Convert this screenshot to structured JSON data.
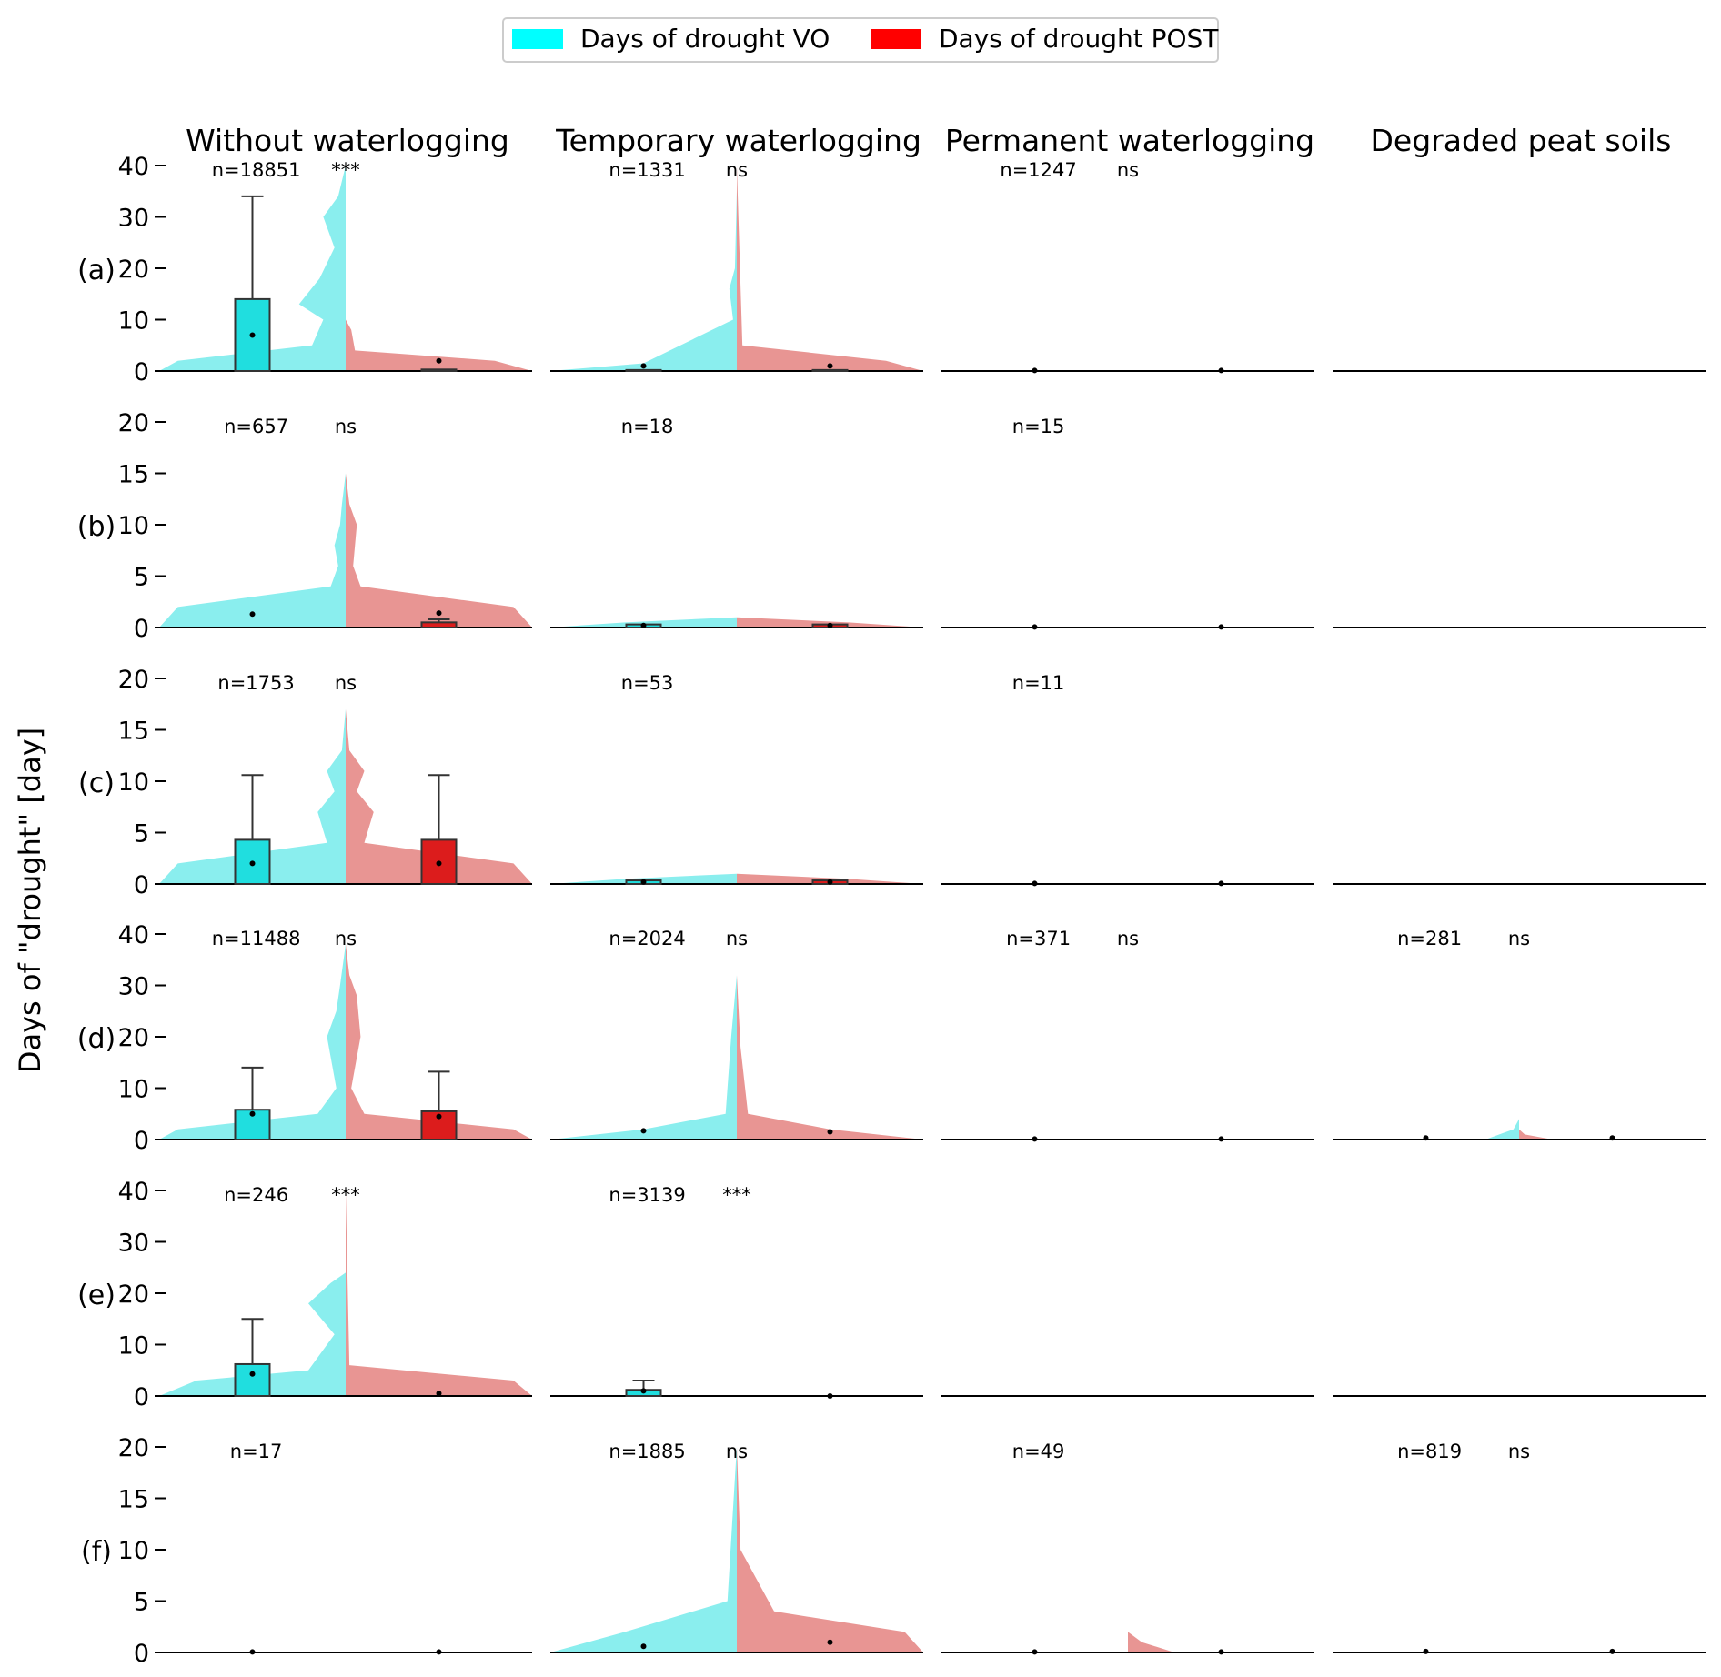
{
  "chart_data": {
    "type": "violin",
    "ylabel": "Days of \"drought\" [day]",
    "legend": [
      {
        "label": "Days of drought VO",
        "color": "#00ffff"
      },
      {
        "label": "Days of drought POST",
        "color": "#ff0000"
      }
    ],
    "columns": [
      "Without waterlogging",
      "Temporary waterlogging",
      "Permanent waterlogging",
      "Degraded peat soils"
    ],
    "rows": [
      {
        "label": "(a)",
        "ylim": [
          0,
          40
        ],
        "ticks": [
          "0",
          "10",
          "20",
          "30",
          "40"
        ],
        "panels": [
          {
            "n": "n=18851",
            "sig": "***",
            "vo_bar": 14,
            "vo_err": 34,
            "vo_mean": 7,
            "post_bar": 0.3,
            "post_err": 0.3,
            "post_mean": 2
          },
          {
            "n": "n=1331",
            "sig": "ns",
            "vo_bar": 0.2,
            "vo_err": 0.2,
            "vo_mean": 1,
            "post_bar": 0.2,
            "post_err": 0.2,
            "post_mean": 1
          },
          {
            "n": "n=1247",
            "sig": "ns",
            "vo_bar": 0,
            "vo_err": 0,
            "vo_mean": 0.1,
            "post_bar": 0,
            "post_err": 0,
            "post_mean": 0.1
          },
          {
            "n": "",
            "sig": ""
          }
        ]
      },
      {
        "label": "(b)",
        "ylim": [
          0,
          20
        ],
        "ticks": [
          "0",
          "5",
          "10",
          "15",
          "20"
        ],
        "panels": [
          {
            "n": "n=657",
            "sig": "ns",
            "vo_bar": 0,
            "vo_err": 0,
            "vo_mean": 1.3,
            "post_bar": 0.5,
            "post_err": 0.8,
            "post_mean": 1.4
          },
          {
            "n": "n=18",
            "sig": "",
            "vo_bar": 0.3,
            "vo_err": 0.4,
            "vo_mean": 0.2,
            "post_bar": 0.3,
            "post_err": 0.4,
            "post_mean": 0.2
          },
          {
            "n": "n=15",
            "sig": "",
            "vo_bar": 0,
            "vo_err": 0,
            "vo_mean": 0.05,
            "post_bar": 0,
            "post_err": 0,
            "post_mean": 0.05
          },
          {
            "n": "",
            "sig": ""
          }
        ]
      },
      {
        "label": "(c)",
        "ylim": [
          0,
          20
        ],
        "ticks": [
          "0",
          "5",
          "10",
          "15",
          "20"
        ],
        "panels": [
          {
            "n": "n=1753",
            "sig": "ns",
            "vo_bar": 4.3,
            "vo_err": 10.6,
            "vo_mean": 2,
            "post_bar": 4.3,
            "post_err": 10.6,
            "post_mean": 2
          },
          {
            "n": "n=53",
            "sig": "",
            "vo_bar": 0.35,
            "vo_err": 0.4,
            "vo_mean": 0.2,
            "post_bar": 0.35,
            "post_err": 0.4,
            "post_mean": 0.2
          },
          {
            "n": "n=11",
            "sig": "",
            "vo_bar": 0,
            "vo_err": 0,
            "vo_mean": 0.05,
            "post_bar": 0,
            "post_err": 0,
            "post_mean": 0.05
          },
          {
            "n": "",
            "sig": ""
          }
        ]
      },
      {
        "label": "(d)",
        "ylim": [
          0,
          40
        ],
        "ticks": [
          "0",
          "10",
          "20",
          "30",
          "40"
        ],
        "panels": [
          {
            "n": "n=11488",
            "sig": "ns",
            "vo_bar": 5.8,
            "vo_err": 14,
            "vo_mean": 5,
            "post_bar": 5.5,
            "post_err": 13.2,
            "post_mean": 4.5
          },
          {
            "n": "n=2024",
            "sig": "ns",
            "vo_bar": 0,
            "vo_err": 0,
            "vo_mean": 1.7,
            "post_bar": 0,
            "post_err": 0,
            "post_mean": 1.5
          },
          {
            "n": "n=371",
            "sig": "ns",
            "vo_bar": 0,
            "vo_err": 0,
            "vo_mean": 0.1,
            "post_bar": 0,
            "post_err": 0,
            "post_mean": 0.1
          },
          {
            "n": "n=281",
            "sig": "ns",
            "vo_bar": 0,
            "vo_err": 0,
            "vo_mean": 0.3,
            "post_bar": 0,
            "post_err": 0,
            "post_mean": 0.3
          }
        ]
      },
      {
        "label": "(e)",
        "ylim": [
          0,
          40
        ],
        "ticks": [
          "0",
          "10",
          "20",
          "30",
          "40"
        ],
        "panels": [
          {
            "n": "n=246",
            "sig": "***",
            "vo_bar": 6.2,
            "vo_err": 15,
            "vo_mean": 4.3,
            "post_bar": 0,
            "post_err": 0,
            "post_mean": 0.5
          },
          {
            "n": "n=3139",
            "sig": "***",
            "vo_bar": 1.2,
            "vo_err": 3,
            "vo_mean": 1,
            "post_bar": 0,
            "post_err": 0,
            "post_mean": 0
          },
          {
            "n": "",
            "sig": ""
          },
          {
            "n": "",
            "sig": ""
          }
        ]
      },
      {
        "label": "(f)",
        "ylim": [
          0,
          20
        ],
        "ticks": [
          "0",
          "5",
          "10",
          "15",
          "20"
        ],
        "panels": [
          {
            "n": "n=17",
            "sig": "",
            "vo_bar": 0,
            "vo_err": 0,
            "vo_mean": 0.05,
            "post_bar": 0,
            "post_err": 0,
            "post_mean": 0.05
          },
          {
            "n": "n=1885",
            "sig": "ns",
            "vo_bar": 0,
            "vo_err": 0,
            "vo_mean": 0.6,
            "post_bar": 0,
            "post_err": 0,
            "post_mean": 1
          },
          {
            "n": "n=49",
            "sig": "",
            "vo_bar": 0,
            "vo_err": 0,
            "vo_mean": 0.05,
            "post_bar": 0,
            "post_err": 0,
            "post_mean": 0.05
          },
          {
            "n": "n=819",
            "sig": "ns",
            "vo_bar": 0,
            "vo_err": 0,
            "vo_mean": 0.1,
            "post_bar": 0,
            "post_err": 0,
            "post_mean": 0.1
          }
        ]
      }
    ]
  }
}
